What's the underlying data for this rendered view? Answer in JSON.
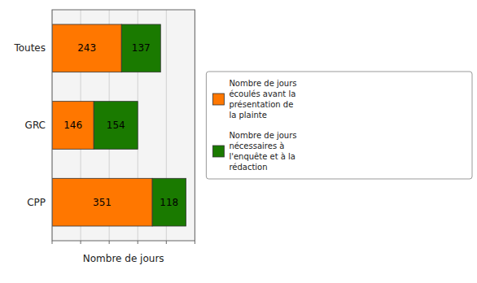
{
  "chart_data": {
    "type": "bar",
    "orientation": "horizontal",
    "stacked": true,
    "categories": [
      "CPP",
      "GRC",
      "Toutes"
    ],
    "series": [
      {
        "name": "Nombre de jours\nécoulés avant la\nprésentation de\nla plainte",
        "color": "#FF7700",
        "values": [
          351,
          146,
          243
        ]
      },
      {
        "name": "Nombre de jours\nnécessaires à\nl'enquête et à la\nrédaction",
        "color": "#1A7A00",
        "values": [
          118,
          154,
          137
        ]
      }
    ],
    "xlabel": "Nombre de jours",
    "xlim": [
      0,
      500
    ],
    "xticks": [
      0,
      100,
      200,
      300,
      400,
      500
    ],
    "grid": true,
    "legend": "right",
    "data_labels": true,
    "tick_labels": "y"
  }
}
